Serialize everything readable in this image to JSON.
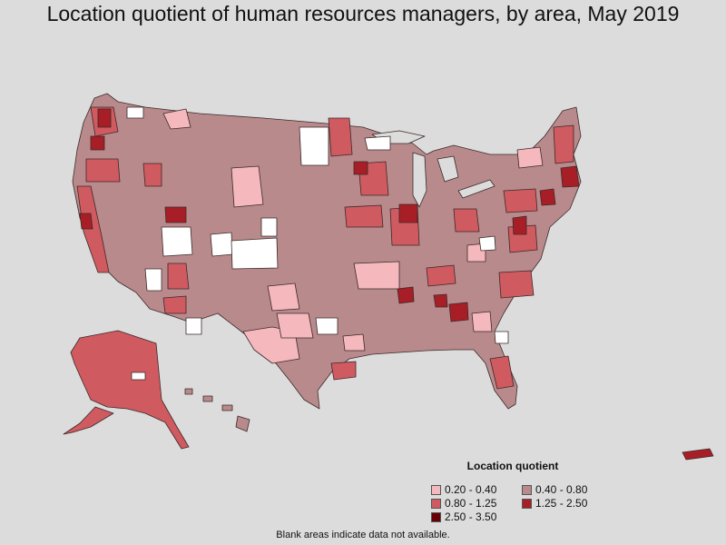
{
  "title": "Location quotient of human resources managers, by area, May 2019",
  "legend": {
    "title": "Location quotient",
    "items": [
      {
        "label": "0.20 - 0.40",
        "color": "#f4b8bd"
      },
      {
        "label": "0.40 - 0.80",
        "color": "#b98a8c"
      },
      {
        "label": "0.80 - 1.25",
        "color": "#cf5a60"
      },
      {
        "label": "1.25 - 2.50",
        "color": "#a81e26"
      },
      {
        "label": "2.50 - 3.50",
        "color": "#680008"
      }
    ]
  },
  "footnote": "Blank areas indicate data not available.",
  "colors": {
    "background": "#dcdcdc",
    "border": "#3a2a2a",
    "no_data": "#ffffff"
  }
}
